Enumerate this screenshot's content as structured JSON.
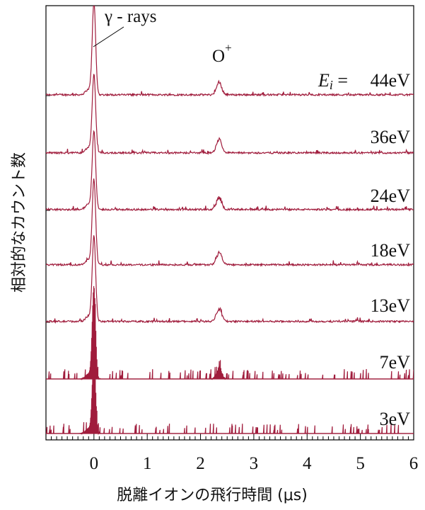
{
  "chart_data": {
    "type": "line",
    "title": "",
    "xlabel": "脱離イオンの飛行時間 (μs)",
    "ylabel": "相対的なカウント数",
    "xlim": [
      -0.9,
      6.0
    ],
    "x_ticks": [
      "0",
      "1",
      "2",
      "3",
      "4",
      "5",
      "6"
    ],
    "x_tick_values": [
      0,
      1,
      2,
      3,
      4,
      5,
      6
    ],
    "grid": false,
    "line_color": "#a01c3c",
    "annotations": {
      "gamma": "γ - rays",
      "ion": "O",
      "ion_sup": "+",
      "energy_prefix": "E",
      "energy_sub": "i",
      "energy_eq": " = "
    },
    "peaks": [
      {
        "name": "gamma-peak",
        "x_center": 0.0
      },
      {
        "name": "o-plus-peak",
        "x_center": 2.35
      }
    ],
    "series": [
      {
        "name": "44eV",
        "label": "44eV",
        "gamma_peak": 2.6,
        "o_peak": 0.33
      },
      {
        "name": "36eV",
        "label": "36eV",
        "gamma_peak": 2.2,
        "o_peak": 0.36
      },
      {
        "name": "24eV",
        "label": "24eV",
        "gamma_peak": 2.2,
        "o_peak": 0.33
      },
      {
        "name": "18eV",
        "label": "18eV",
        "gamma_peak": 2.4,
        "o_peak": 0.34
      },
      {
        "name": "13eV",
        "label": "13eV",
        "gamma_peak": 2.4,
        "o_peak": 0.36
      },
      {
        "name": "7eV",
        "label": "7eV",
        "gamma_peak": 2.6,
        "o_peak": 0.32
      },
      {
        "name": "3eV",
        "label": "3eV",
        "gamma_peak": 2.2,
        "o_peak": 0.0
      }
    ]
  }
}
